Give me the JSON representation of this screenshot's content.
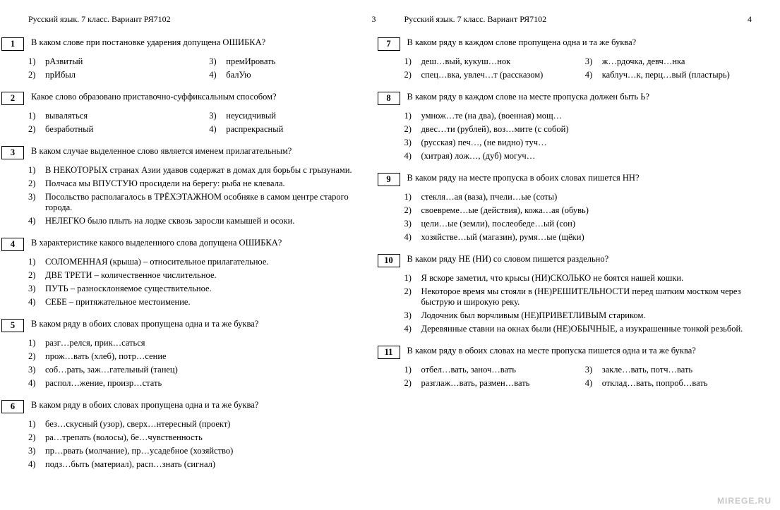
{
  "watermark": "MIREGE.RU",
  "header": {
    "left": "Русский язык. 7 класс. Вариант РЯ7102",
    "page_a": "3",
    "page_b": "4"
  },
  "pages": [
    {
      "num": "3",
      "questions": [
        {
          "n": "1",
          "text": "В каком слове при постановке ударения допущена ОШИБКА?",
          "layout": "2col",
          "opts": [
            {
              "n": "1)",
              "t": "рАзвитый"
            },
            {
              "n": "3)",
              "t": "премИровать"
            },
            {
              "n": "2)",
              "t": "прИбыл"
            },
            {
              "n": "4)",
              "t": "балУю"
            }
          ]
        },
        {
          "n": "2",
          "text": "Какое слово образовано приставочно-суффиксальным способом?",
          "layout": "2col",
          "opts": [
            {
              "n": "1)",
              "t": "вываляться"
            },
            {
              "n": "3)",
              "t": "неусидчивый"
            },
            {
              "n": "2)",
              "t": "безработный"
            },
            {
              "n": "4)",
              "t": "распрекрасный"
            }
          ]
        },
        {
          "n": "3",
          "text": "В каком случае выделенное слово является именем прилагательным?",
          "layout": "1col",
          "opts": [
            {
              "n": "1)",
              "t": "В НЕКОТОРЫХ странах Азии удавов содержат в домах для борьбы с грызунами."
            },
            {
              "n": "2)",
              "t": "Полчаса мы ВПУСТУЮ просидели на берегу: рыба не клевала."
            },
            {
              "n": "3)",
              "t": "Посольство располагалось в ТРЁХЭТАЖНОМ особняке в самом центре старого города."
            },
            {
              "n": "4)",
              "t": "НЕЛЕГКО было плыть на лодке сквозь заросли камышей и осоки."
            }
          ]
        },
        {
          "n": "4",
          "text": "В характеристике какого выделенного слова допущена ОШИБКА?",
          "layout": "1col",
          "opts": [
            {
              "n": "1)",
              "t": "СОЛОМЕННАЯ (крыша) – относительное прилагательное."
            },
            {
              "n": "2)",
              "t": "ДВЕ ТРЕТИ – количественное числительное."
            },
            {
              "n": "3)",
              "t": "ПУТЬ – разносклоняемое существительное."
            },
            {
              "n": "4)",
              "t": "СЕБЕ – притяжательное местоимение."
            }
          ]
        },
        {
          "n": "5",
          "text": "В каком ряду в обоих словах пропущена одна и та же буква?",
          "layout": "1col",
          "opts": [
            {
              "n": "1)",
              "t": "разг…релся, прик…саться"
            },
            {
              "n": "2)",
              "t": "прож…вать (хлеб), потр…сение"
            },
            {
              "n": "3)",
              "t": "соб…рать, заж…гательный (танец)"
            },
            {
              "n": "4)",
              "t": "распол…жение, произр…стать"
            }
          ]
        },
        {
          "n": "6",
          "text": "В каком ряду в обоих словах пропущена одна и та же буква?",
          "layout": "1col",
          "opts": [
            {
              "n": "1)",
              "t": "без…скусный (узор), сверх…нтересный (проект)"
            },
            {
              "n": "2)",
              "t": "ра…трепать (волосы), бе…чувственность"
            },
            {
              "n": "3)",
              "t": "пр…рвать (молчание), пр…усадебное (хозяйство)"
            },
            {
              "n": "4)",
              "t": "подз…быть (материал), расп…знать (сигнал)"
            }
          ]
        }
      ]
    },
    {
      "num": "4",
      "questions": [
        {
          "n": "7",
          "text": "В каком ряду в каждом слове пропущена одна и та же буква?",
          "layout": "2col",
          "opts": [
            {
              "n": "1)",
              "t": "деш…вый, кукуш…нок"
            },
            {
              "n": "3)",
              "t": "ж…рдочка, девч…нка"
            },
            {
              "n": "2)",
              "t": "спец…вка, увлеч…т (рассказом)"
            },
            {
              "n": "4)",
              "t": "каблуч…к, перц…вый (пластырь)"
            }
          ]
        },
        {
          "n": "8",
          "text": "В каком ряду в каждом слове на месте пропуска должен быть Ь?",
          "layout": "1col",
          "opts": [
            {
              "n": "1)",
              "t": "умнож…те (на два), (военная) мощ…"
            },
            {
              "n": "2)",
              "t": "двес…ти (рублей), воз…мите (с собой)"
            },
            {
              "n": "3)",
              "t": "(русская) печ…, (не видно) туч…"
            },
            {
              "n": "4)",
              "t": "(хитрая) лож…, (дуб) могуч…"
            }
          ]
        },
        {
          "n": "9",
          "text": "В каком ряду на месте пропуска в обоих словах пишется НН?",
          "layout": "1col",
          "opts": [
            {
              "n": "1)",
              "t": "стекля…ая (ваза), пчели…ые (соты)"
            },
            {
              "n": "2)",
              "t": "своевреме…ые (действия), кожа…ая (обувь)"
            },
            {
              "n": "3)",
              "t": "цели…ые (земли), послеобеде…ый (сон)"
            },
            {
              "n": "4)",
              "t": "хозяйстве…ый (магазин), румя…ые (щёки)"
            }
          ]
        },
        {
          "n": "10",
          "text": "В каком ряду НЕ (НИ) со словом пишется раздельно?",
          "layout": "1col",
          "opts": [
            {
              "n": "1)",
              "t": "Я вскоре заметил, что крысы (НИ)СКОЛЬКО не боятся нашей кошки."
            },
            {
              "n": "2)",
              "t": "Некоторое время мы стояли в (НЕ)РЕШИТЕЛЬНОСТИ перед шатким мостком через быструю и широкую реку."
            },
            {
              "n": "3)",
              "t": "Лодочник был ворчливым (НЕ)ПРИВЕТЛИВЫМ стариком."
            },
            {
              "n": "4)",
              "t": "Деревянные ставни на окнах были (НЕ)ОБЫЧНЫЕ, а изукрашенные тонкой резьбой."
            }
          ]
        },
        {
          "n": "11",
          "text": "В каком ряду в обоих словах на месте пропуска пишется одна и та же буква?",
          "layout": "2col",
          "opts": [
            {
              "n": "1)",
              "t": "отбел…вать, заноч…вать"
            },
            {
              "n": "3)",
              "t": "закле…вать, потч…вать"
            },
            {
              "n": "2)",
              "t": "разглаж…вать, размен…вать"
            },
            {
              "n": "4)",
              "t": "отклад…вать, попроб…вать"
            }
          ]
        }
      ]
    }
  ]
}
